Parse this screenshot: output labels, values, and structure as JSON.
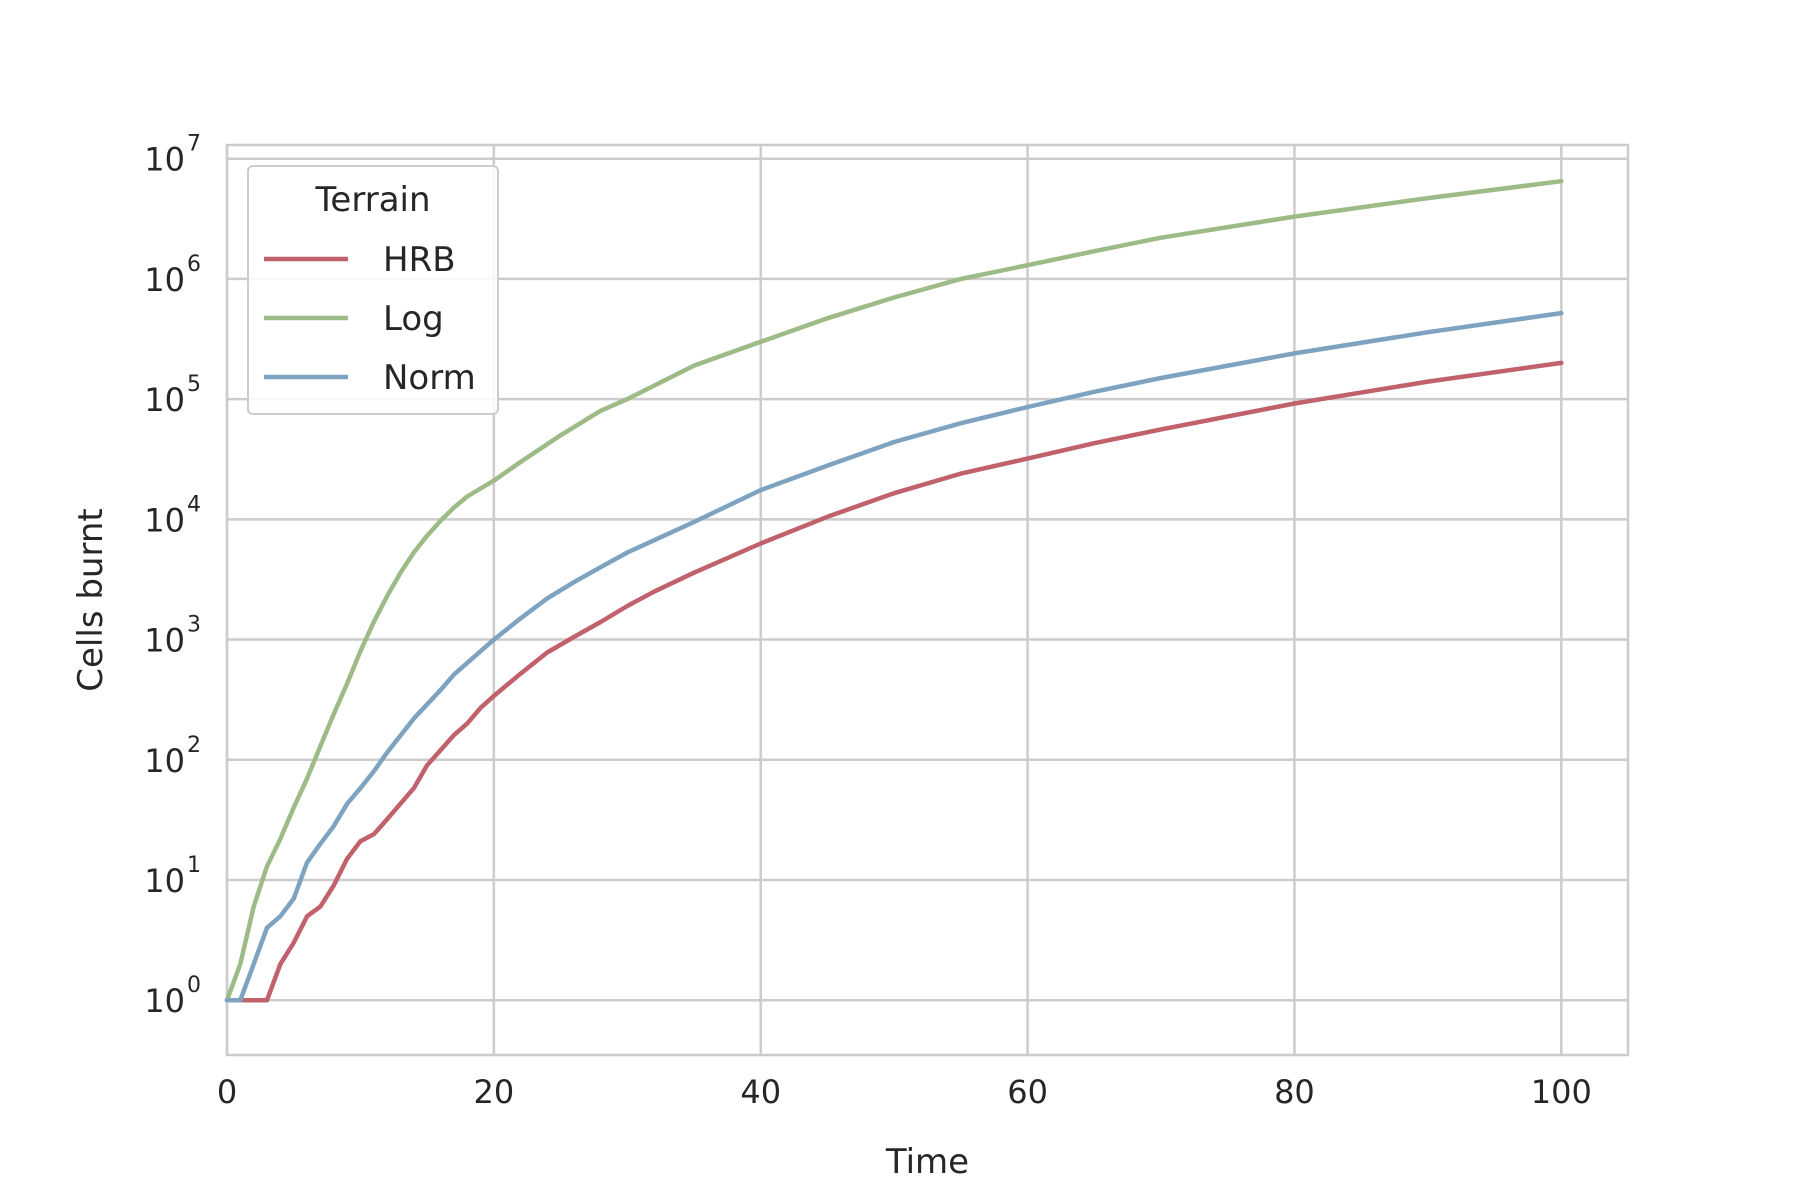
{
  "chart_data": {
    "type": "line",
    "title": "",
    "xlabel": "Time",
    "ylabel": "Cells burnt",
    "xlim": [
      0,
      105
    ],
    "ylim": [
      0.35,
      13000000
    ],
    "yscale": "log",
    "grid": true,
    "legend_title": "Terrain",
    "legend_position": "top-left",
    "x_ticks": [
      0,
      20,
      40,
      60,
      80,
      100
    ],
    "y_ticks": [
      {
        "value": 1,
        "base": "10",
        "exp": "0"
      },
      {
        "value": 10,
        "base": "10",
        "exp": "1"
      },
      {
        "value": 100,
        "base": "10",
        "exp": "2"
      },
      {
        "value": 1000,
        "base": "10",
        "exp": "3"
      },
      {
        "value": 10000,
        "base": "10",
        "exp": "4"
      },
      {
        "value": 100000,
        "base": "10",
        "exp": "5"
      },
      {
        "value": 1000000,
        "base": "10",
        "exp": "6"
      },
      {
        "value": 10000000,
        "base": "10",
        "exp": "7"
      }
    ],
    "series": [
      {
        "name": "HRB",
        "color": "#c0616b",
        "x": [
          0,
          1,
          2,
          3,
          4,
          5,
          6,
          7,
          8,
          9,
          10,
          11,
          12,
          14,
          15,
          17,
          18,
          19,
          20,
          22,
          24,
          26,
          28,
          30,
          32,
          35,
          40,
          45,
          50,
          55,
          60,
          65,
          70,
          80,
          90,
          100
        ],
        "y": [
          1,
          1,
          1,
          1,
          2,
          3,
          5,
          6,
          9,
          15,
          21,
          24,
          32,
          58,
          90,
          160,
          200,
          270,
          340,
          520,
          780,
          1050,
          1400,
          1900,
          2500,
          3600,
          6300,
          10500,
          16500,
          24000,
          32000,
          43000,
          56000,
          92000,
          140000,
          200000
        ]
      },
      {
        "name": "Log",
        "color": "#9dbb87",
        "x": [
          0,
          1,
          2,
          3,
          4,
          5,
          6,
          7,
          8,
          9,
          10,
          11,
          12,
          13,
          14,
          15,
          16,
          17,
          18,
          20,
          22,
          25,
          28,
          30,
          35,
          40,
          45,
          50,
          55,
          60,
          65,
          70,
          80,
          90,
          100
        ],
        "y": [
          1,
          2,
          6,
          13,
          22,
          40,
          70,
          130,
          240,
          430,
          800,
          1400,
          2300,
          3600,
          5300,
          7300,
          9700,
          12500,
          15500,
          21000,
          30000,
          50000,
          80000,
          100000,
          190000,
          300000,
          470000,
          700000,
          1000000,
          1300000,
          1700000,
          2200000,
          3300000,
          4700000,
          6500000
        ]
      },
      {
        "name": "Norm",
        "color": "#7ea3c1",
        "x": [
          0,
          1,
          2,
          3,
          4,
          5,
          6,
          7,
          8,
          9,
          10,
          11,
          12,
          14,
          16,
          17,
          18,
          20,
          22,
          24,
          26,
          28,
          30,
          35,
          40,
          45,
          50,
          55,
          60,
          65,
          70,
          80,
          90,
          100
        ],
        "y": [
          1,
          1,
          2,
          4,
          5,
          7,
          14,
          20,
          28,
          43,
          58,
          80,
          115,
          220,
          380,
          510,
          640,
          1000,
          1500,
          2200,
          3000,
          4000,
          5300,
          9500,
          17500,
          28000,
          44000,
          63000,
          86000,
          115000,
          150000,
          240000,
          360000,
          520000
        ]
      }
    ]
  }
}
